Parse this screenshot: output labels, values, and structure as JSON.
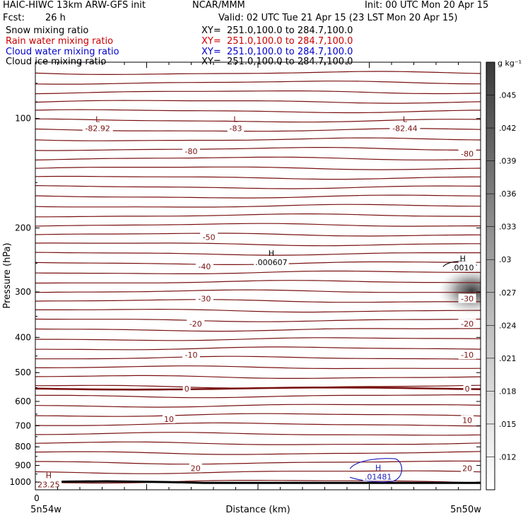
{
  "header": {
    "title": "HAIC-HIWC 13km ARW-GFS init",
    "center": "NCAR/MMM",
    "init": "Init: 00 UTC Mon 20 Apr 15",
    "fcst_label": "Fcst:",
    "fcst_value": "26 h",
    "valid": "Valid: 02 UTC Tue 21 Apr 15 (23 LST Mon 20 Apr 15)"
  },
  "legend": [
    {
      "label": "Snow mixing ratio",
      "xy": "XY=  251.0,100.0 to 284.7,100.0",
      "color": "#000000"
    },
    {
      "label": "Rain water mixing ratio",
      "xy": "XY=  251.0,100.0 to 284.7,100.0",
      "color": "#cc0000"
    },
    {
      "label": "Cloud water mixing ratio",
      "xy": "XY=  251.0,100.0 to 284.7,100.0",
      "color": "#0000cc"
    },
    {
      "label": "Cloud ice mixing ratio",
      "xy": "XY=  251.0,100.0 to 284.7,100.0",
      "color": "#000000"
    }
  ],
  "colors": {
    "temperature_contour": "#7a1010",
    "cloud_water_contour": "#2020c0",
    "terrain": "#000000",
    "shading_max": "#303030"
  },
  "chart_data": {
    "type": "cross-section",
    "ylabel": "Pressure (hPa)",
    "xlabel": "Distance (km)",
    "y_scale": "log-pressure",
    "ylim": [
      1050,
      70
    ],
    "y_ticks": [
      100,
      200,
      300,
      400,
      500,
      600,
      700,
      800,
      900,
      1000
    ],
    "x_start_tick": "0",
    "x_left_label": "5n54w",
    "x_right_label": "5n50w",
    "colorbar": {
      "unit": "g kg⁻¹",
      "ticks": [
        ".012",
        ".015",
        ".018",
        ".021",
        ".024",
        ".027",
        ".03",
        ".033",
        ".036",
        ".039",
        ".042",
        ".045"
      ],
      "min": 0.009,
      "max": 0.048
    },
    "temperature_labels": [
      {
        "text": "-80",
        "x": 0.35,
        "p": 123
      },
      {
        "text": "-80",
        "x": 0.97,
        "p": 125
      },
      {
        "text": "-50",
        "x": 0.39,
        "p": 212
      },
      {
        "text": "-40",
        "x": 0.38,
        "p": 255
      },
      {
        "text": "-40",
        "x": 0.97,
        "p": 255
      },
      {
        "text": "-30",
        "x": 0.38,
        "p": 313
      },
      {
        "text": "-30",
        "x": 0.97,
        "p": 313
      },
      {
        "text": "-20",
        "x": 0.36,
        "p": 367
      },
      {
        "text": "-20",
        "x": 0.97,
        "p": 367
      },
      {
        "text": "-10",
        "x": 0.35,
        "p": 447
      },
      {
        "text": "-10",
        "x": 0.97,
        "p": 447
      },
      {
        "text": "0",
        "x": 0.34,
        "p": 553
      },
      {
        "text": "0",
        "x": 0.97,
        "p": 553
      },
      {
        "text": "10",
        "x": 0.3,
        "p": 671
      },
      {
        "text": "10",
        "x": 0.97,
        "p": 676
      },
      {
        "text": "20",
        "x": 0.36,
        "p": 915
      },
      {
        "text": "20",
        "x": 0.97,
        "p": 915
      }
    ],
    "extrema": [
      {
        "mark": "L",
        "value": "-82.92",
        "x": 0.14,
        "p": 103,
        "color": "temperature"
      },
      {
        "mark": "L",
        "value": "-83",
        "x": 0.45,
        "p": 103,
        "color": "temperature"
      },
      {
        "mark": "L",
        "value": "-82.44",
        "x": 0.83,
        "p": 103,
        "color": "temperature"
      },
      {
        "mark": "H",
        "value": "23.25",
        "x": 0.03,
        "p": 985,
        "color": "temperature"
      },
      {
        "mark": "H",
        "value": ".000607",
        "x": 0.53,
        "p": 241,
        "color": "snow"
      },
      {
        "mark": "H",
        "value": ".0010",
        "x": 0.96,
        "p": 249,
        "color": "snow"
      },
      {
        "mark": "H",
        "value": ".01481",
        "x": 0.77,
        "p": 936,
        "color": "cloud_water"
      }
    ],
    "shading": [
      {
        "x": 0.98,
        "p": 298,
        "max": 0.039
      }
    ]
  }
}
